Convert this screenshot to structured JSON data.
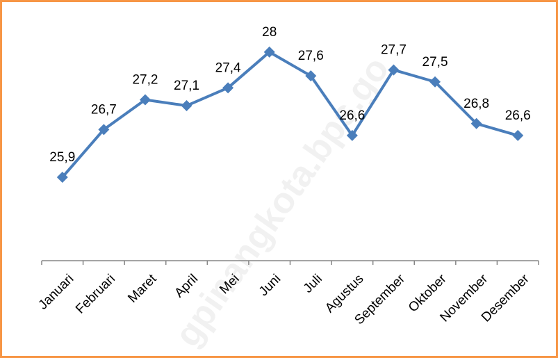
{
  "chart_data": {
    "type": "line",
    "categories": [
      "Januari",
      "Februari",
      "Maret",
      "April",
      "Mei",
      "Juni",
      "Juli",
      "Agustus",
      "September",
      "Oktober",
      "November",
      "Desember"
    ],
    "values": [
      25.9,
      26.7,
      27.2,
      27.1,
      27.4,
      28,
      27.6,
      26.6,
      27.7,
      27.5,
      26.8,
      26.6
    ],
    "value_labels": [
      "25,9",
      "26,7",
      "27,2",
      "27,1",
      "27,4",
      "28",
      "27,6",
      "26,6",
      "27,7",
      "27,5",
      "26,8",
      "26,6"
    ],
    "color": "#4a7ebb",
    "ylim": [
      24.5,
      28.5
    ],
    "watermark": "gpinangkota.bps.go"
  }
}
